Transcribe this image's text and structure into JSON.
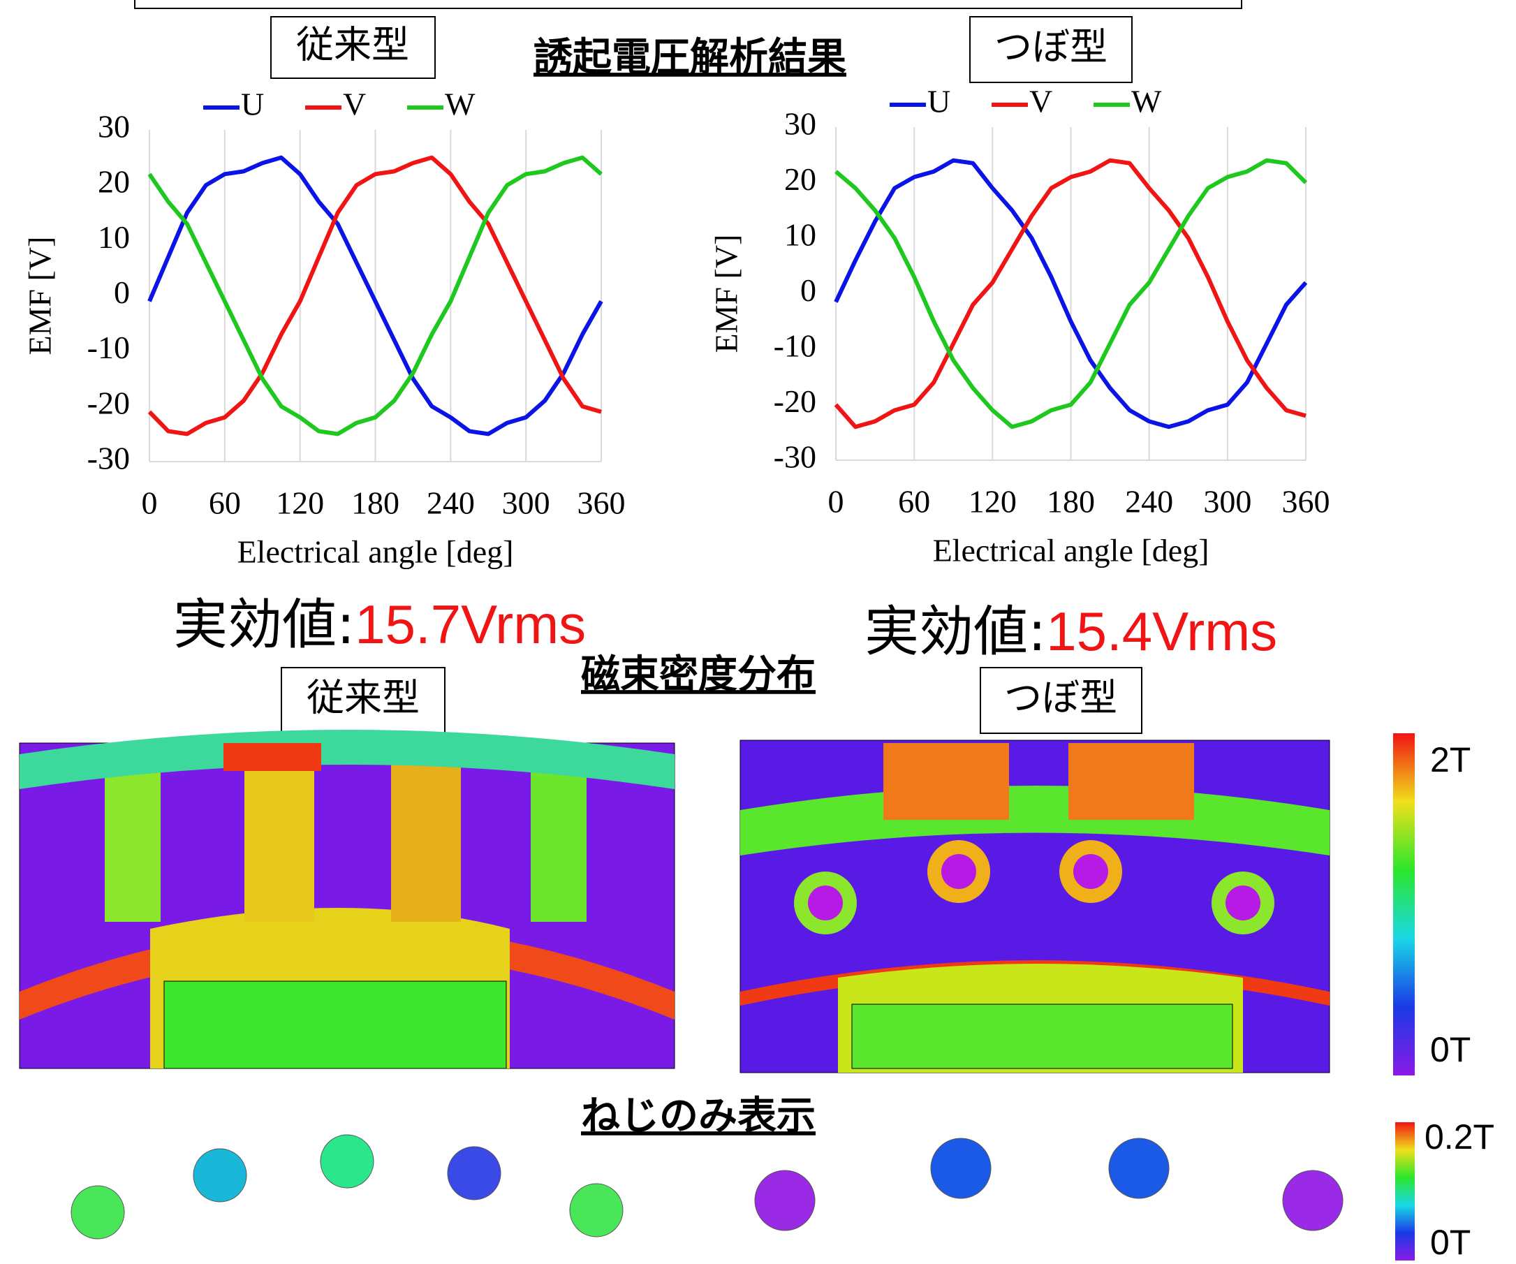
{
  "header": {
    "title": "誘起電圧解析結果"
  },
  "models": [
    "従来型",
    "つぼ型"
  ],
  "rms": [
    {
      "label": "実効値:",
      "value": "15.7Vrms"
    },
    {
      "label": "実効値:",
      "value": "15.4Vrms"
    }
  ],
  "flux": {
    "title": "磁束密度分布",
    "colorbar": [
      "2T",
      "0T"
    ]
  },
  "screw": {
    "title": "ねじのみ表示",
    "colorbar": [
      "0.2T",
      "0T"
    ]
  },
  "chart_data": [
    {
      "type": "line",
      "xlabel": "Electrical angle [deg]",
      "ylabel": "EMF [V]",
      "x": [
        0,
        15,
        30,
        45,
        60,
        75,
        90,
        105,
        120,
        135,
        150,
        165,
        180,
        195,
        210,
        225,
        240,
        255,
        270,
        285,
        300,
        315,
        330,
        345,
        360
      ],
      "xlim": [
        0,
        360
      ],
      "xticks": [
        0,
        60,
        120,
        180,
        240,
        300,
        360
      ],
      "ylim": [
        -30,
        30
      ],
      "yticks": [
        -30,
        -20,
        -10,
        0,
        10,
        20,
        30
      ],
      "grid": "x",
      "series": [
        {
          "name": "U",
          "color": "#0a14e6",
          "values": [
            -1,
            7,
            15,
            20,
            22,
            22.5,
            24,
            25,
            22,
            17,
            13,
            6,
            -1,
            -8,
            -15,
            -20,
            -22,
            -24.5,
            -25,
            -23,
            -22,
            -19,
            -14,
            -7,
            -1
          ]
        },
        {
          "name": "V",
          "color": "#f01414",
          "values": [
            -21,
            -24.5,
            -25,
            -23,
            -22,
            -19,
            -14,
            -7,
            -1,
            7,
            15,
            20,
            22,
            22.5,
            24,
            25,
            22,
            17,
            13,
            6,
            -1,
            -8,
            -15,
            -20,
            -21
          ]
        },
        {
          "name": "W",
          "color": "#1ec81e",
          "values": [
            22,
            17,
            13,
            6,
            -1,
            -8,
            -15,
            -20,
            -22,
            -24.5,
            -25,
            -23,
            -22,
            -19,
            -14,
            -7,
            -1,
            7,
            15,
            20,
            22,
            22.5,
            24,
            25,
            22
          ]
        }
      ]
    },
    {
      "type": "line",
      "xlabel": "Electrical angle [deg]",
      "ylabel": "EMF [V]",
      "x": [
        0,
        15,
        30,
        45,
        60,
        75,
        90,
        105,
        120,
        135,
        150,
        165,
        180,
        195,
        210,
        225,
        240,
        255,
        270,
        285,
        300,
        315,
        330,
        345,
        360
      ],
      "xlim": [
        0,
        360
      ],
      "xticks": [
        0,
        60,
        120,
        180,
        240,
        300,
        360
      ],
      "ylim": [
        -30,
        30
      ],
      "yticks": [
        -30,
        -20,
        -10,
        0,
        10,
        20,
        30
      ],
      "grid": "x",
      "series": [
        {
          "name": "U",
          "color": "#0a14e6",
          "values": [
            -1.5,
            6,
            13,
            19,
            21,
            22,
            24,
            23.5,
            19,
            15,
            10,
            3,
            -5,
            -12,
            -17,
            -21,
            -23,
            -24,
            -23,
            -21,
            -20,
            -16,
            -9,
            -2,
            2
          ]
        },
        {
          "name": "V",
          "color": "#f01414",
          "values": [
            -20,
            -24,
            -23,
            -21,
            -20,
            -16,
            -9,
            -2,
            2,
            8,
            14,
            19,
            21,
            22,
            24,
            23.5,
            19,
            15,
            10,
            3,
            -5,
            -12,
            -17,
            -21,
            -22
          ]
        },
        {
          "name": "W",
          "color": "#1ec81e",
          "values": [
            22,
            19,
            15,
            10,
            3,
            -5,
            -12,
            -17,
            -21,
            -24,
            -23,
            -21,
            -20,
            -16,
            -9,
            -2,
            2,
            8,
            14,
            19,
            21,
            22,
            24,
            23.5,
            20
          ]
        }
      ]
    }
  ]
}
